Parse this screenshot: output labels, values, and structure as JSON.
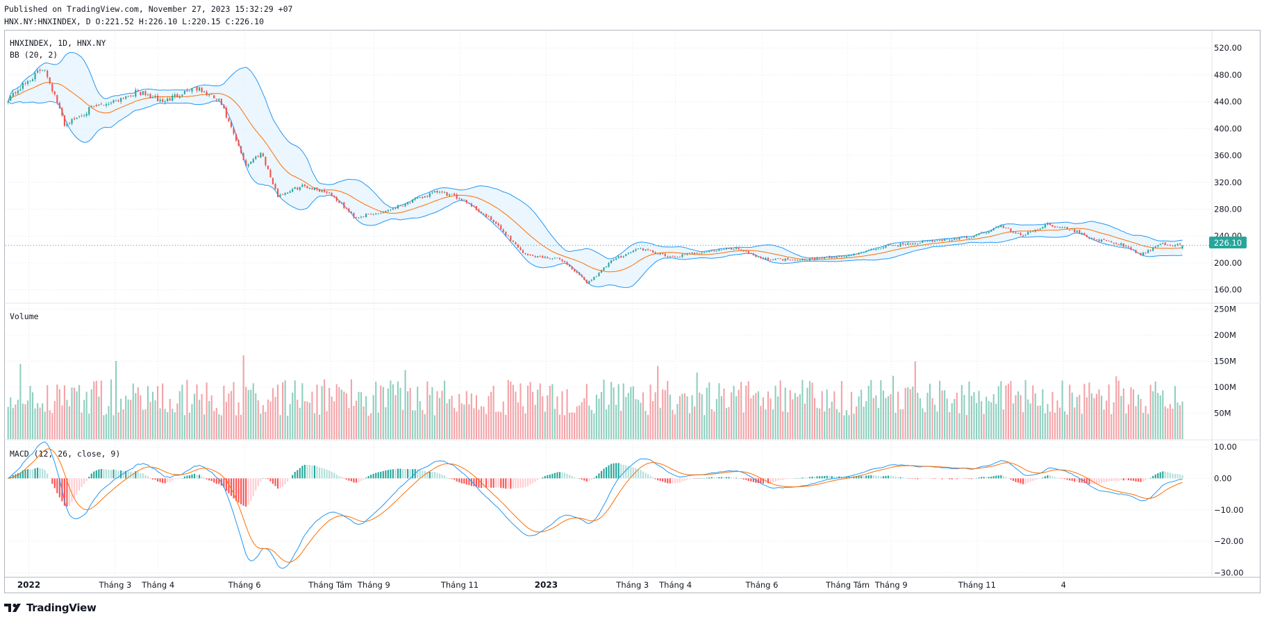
{
  "header": {
    "line1": "Published on TradingView.com, November 27, 2023 15:32:29 +07",
    "line2": "HNX.NY:HNXINDEX, D O:221.52 H:226.10 L:220.15 C:226.10"
  },
  "brand": {
    "name": "TradingView",
    "icon": "tradingview-logo-icon"
  },
  "colors": {
    "up": "#26a69a",
    "down": "#ef5350",
    "vol_up": "#8fcfbf",
    "vol_down": "#f3a3a8",
    "bb_band": "#2196f3",
    "bb_basis": "#ff6d00",
    "bb_fill": "#e3f2fd",
    "macd_line": "#2196f3",
    "signal_line": "#ff6d00",
    "hist_up_strong": "#26a69a",
    "hist_up_weak": "#b2dfdb",
    "hist_down_strong": "#ff5252",
    "hist_down_weak": "#ffcdd2",
    "price_badge": "#26a69a",
    "grid": "#eef0f3"
  },
  "chart_data": [
    {
      "type": "candlestick",
      "title": "HNXINDEX, 1D, HNX.NY",
      "indicator": "BB (20, 2)",
      "ylim": [
        140,
        545
      ],
      "y_ticks": [
        "520.00",
        "480.00",
        "440.00",
        "400.00",
        "360.00",
        "320.00",
        "280.00",
        "240.00",
        "200.00",
        "160.00"
      ],
      "last_price": 226.1,
      "last_price_label": "226.10",
      "grid": true,
      "close_path": [
        [
          2021.96,
          445
        ],
        [
          2022.03,
          492
        ],
        [
          2022.07,
          405
        ],
        [
          2022.12,
          430
        ],
        [
          2022.16,
          440
        ],
        [
          2022.21,
          455
        ],
        [
          2022.26,
          440
        ],
        [
          2022.32,
          462
        ],
        [
          2022.37,
          440
        ],
        [
          2022.42,
          345
        ],
        [
          2022.45,
          365
        ],
        [
          2022.48,
          300
        ],
        [
          2022.53,
          315
        ],
        [
          2022.58,
          305
        ],
        [
          2022.63,
          268
        ],
        [
          2022.68,
          275
        ],
        [
          2022.74,
          292
        ],
        [
          2022.79,
          306
        ],
        [
          2022.84,
          295
        ],
        [
          2022.9,
          260
        ],
        [
          2022.96,
          212
        ],
        [
          2023.03,
          205
        ],
        [
          2023.08,
          170
        ],
        [
          2023.13,
          205
        ],
        [
          2023.18,
          222
        ],
        [
          2023.24,
          208
        ],
        [
          2023.29,
          215
        ],
        [
          2023.37,
          222
        ],
        [
          2023.42,
          206
        ],
        [
          2023.5,
          205
        ],
        [
          2023.58,
          210
        ],
        [
          2023.66,
          225
        ],
        [
          2023.74,
          232
        ],
        [
          2023.82,
          238
        ],
        [
          2023.88,
          255
        ],
        [
          2023.92,
          240
        ],
        [
          2023.97,
          258
        ],
        [
          2024.02,
          248
        ],
        [
          2024.06,
          235
        ],
        [
          2024.11,
          228
        ],
        [
          2024.15,
          212
        ],
        [
          2024.19,
          228
        ],
        [
          2024.23,
          226
        ]
      ]
    },
    {
      "type": "bar",
      "title": "Volume",
      "ylim": [
        0,
        260
      ],
      "y_ticks": [
        "250M",
        "200M",
        "150M",
        "100M",
        "50M"
      ],
      "unit": "M",
      "grid": true
    },
    {
      "type": "line",
      "title": "MACD (12, 26, close, 9)",
      "ylim": [
        -31,
        12
      ],
      "y_ticks": [
        "10.00",
        "0.00",
        "−10.00",
        "−20.00",
        "−30.00"
      ],
      "series": [],
      "grid": true
    }
  ],
  "x_axis": {
    "ticks": [
      {
        "label": "2022",
        "bold": true
      },
      {
        "label": "Tháng 3",
        "bold": false
      },
      {
        "label": "Tháng 4",
        "bold": false
      },
      {
        "label": "Tháng 6",
        "bold": false
      },
      {
        "label": "Tháng Tám",
        "bold": false
      },
      {
        "label": "Tháng 9",
        "bold": false
      },
      {
        "label": "Tháng 11",
        "bold": false
      },
      {
        "label": "2023",
        "bold": true
      },
      {
        "label": "Tháng 3",
        "bold": false
      },
      {
        "label": "Tháng 4",
        "bold": false
      },
      {
        "label": "Tháng 6",
        "bold": false
      },
      {
        "label": "Tháng Tám",
        "bold": false
      },
      {
        "label": "Tháng 9",
        "bold": false
      },
      {
        "label": "Tháng 11",
        "bold": false
      },
      {
        "label": "4",
        "bold": false
      }
    ]
  }
}
